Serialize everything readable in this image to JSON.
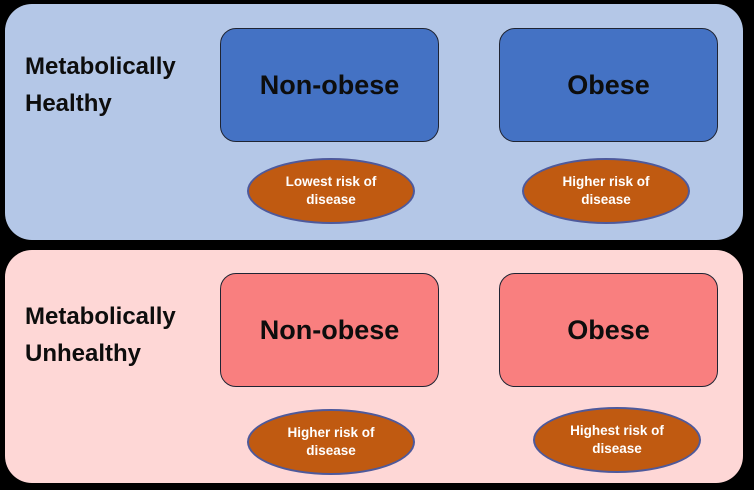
{
  "colors": {
    "background": "#000000",
    "healthy_panel": "#b4c7e7",
    "healthy_box": "#4472c4",
    "unhealthy_panel": "#fed7d6",
    "unhealthy_box": "#f97f7f",
    "risk_ellipse": "#c05a11",
    "ellipse_border": "#4e599b",
    "box_border": "#1f2433",
    "label_text": "#0d0d0d",
    "ellipse_text": "#ffffff"
  },
  "panels": [
    {
      "label": "Metabolically\nHealthy",
      "columns": [
        {
          "box_label": "Non-obese",
          "risk_label": "Lowest risk of\ndisease"
        },
        {
          "box_label": "Obese",
          "risk_label": "Higher risk of\ndisease"
        }
      ]
    },
    {
      "label": "Metabolically\nUnhealthy",
      "columns": [
        {
          "box_label": "Non-obese",
          "risk_label": "Higher risk of\ndisease"
        },
        {
          "box_label": "Obese",
          "risk_label": "Highest risk of\ndisease"
        }
      ]
    }
  ]
}
